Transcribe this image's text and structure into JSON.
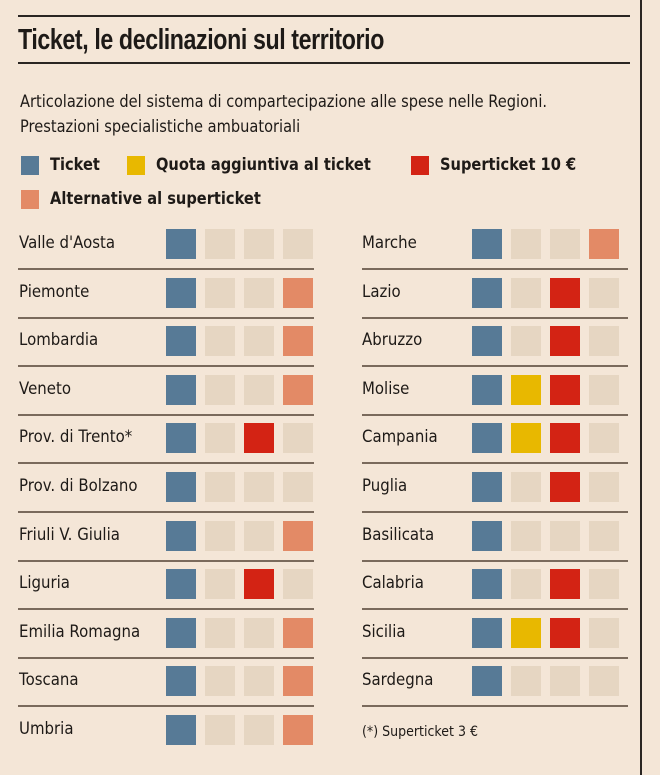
{
  "title": "Ticket, le declinazioni sul territorio",
  "subtitle": [
    "Articolazione del sistema di compartecipazione alle spese nelle Regioni.",
    "Prestazioni specialistiche ambuatoriali"
  ],
  "colors": {
    "ticket": "#577a96",
    "quota": "#e8b800",
    "superticket": "#d32314",
    "alternative": "#e38a66",
    "empty": "#e6d6c2"
  },
  "legend": [
    {
      "key": "ticket",
      "label": "Ticket"
    },
    {
      "key": "quota",
      "label": "Quota aggiuntiva al ticket"
    },
    {
      "key": "superticket",
      "label": "Superticket 10 €"
    },
    {
      "key": "alternative",
      "label": "Alternative al superticket"
    }
  ],
  "footnote": "(*)  Superticket 3 €",
  "chart_data": {
    "type": "table",
    "title": "Ticket, le declinazioni sul territorio",
    "columns": [
      "Ticket",
      "Quota aggiuntiva al ticket",
      "Superticket 10 €",
      "Alternative al superticket"
    ],
    "rows": [
      {
        "region": "Valle d'Aosta",
        "values": [
          1,
          0,
          0,
          0
        ]
      },
      {
        "region": "Piemonte",
        "values": [
          1,
          0,
          0,
          1
        ]
      },
      {
        "region": "Lombardia",
        "values": [
          1,
          0,
          0,
          1
        ]
      },
      {
        "region": "Veneto",
        "values": [
          1,
          0,
          0,
          1
        ]
      },
      {
        "region": "Prov. di Trento*",
        "values": [
          1,
          0,
          1,
          0
        ]
      },
      {
        "region": "Prov. di Bolzano",
        "values": [
          1,
          0,
          0,
          0
        ]
      },
      {
        "region": "Friuli V. Giulia",
        "values": [
          1,
          0,
          0,
          1
        ]
      },
      {
        "region": "Liguria",
        "values": [
          1,
          0,
          1,
          0
        ]
      },
      {
        "region": "Emilia Romagna",
        "values": [
          1,
          0,
          0,
          1
        ]
      },
      {
        "region": "Toscana",
        "values": [
          1,
          0,
          0,
          1
        ]
      },
      {
        "region": "Umbria",
        "values": [
          1,
          0,
          0,
          1
        ]
      },
      {
        "region": "Marche",
        "values": [
          1,
          0,
          0,
          1
        ]
      },
      {
        "region": "Lazio",
        "values": [
          1,
          0,
          1,
          0
        ]
      },
      {
        "region": "Abruzzo",
        "values": [
          1,
          0,
          1,
          0
        ]
      },
      {
        "region": "Molise",
        "values": [
          1,
          1,
          1,
          0
        ]
      },
      {
        "region": "Campania",
        "values": [
          1,
          1,
          1,
          0
        ]
      },
      {
        "region": "Puglia",
        "values": [
          1,
          0,
          1,
          0
        ]
      },
      {
        "region": "Basilicata",
        "values": [
          1,
          0,
          0,
          0
        ]
      },
      {
        "region": "Calabria",
        "values": [
          1,
          0,
          1,
          0
        ]
      },
      {
        "region": "Sicilia",
        "values": [
          1,
          1,
          1,
          0
        ]
      },
      {
        "region": "Sardegna",
        "values": [
          1,
          0,
          0,
          0
        ]
      }
    ]
  }
}
